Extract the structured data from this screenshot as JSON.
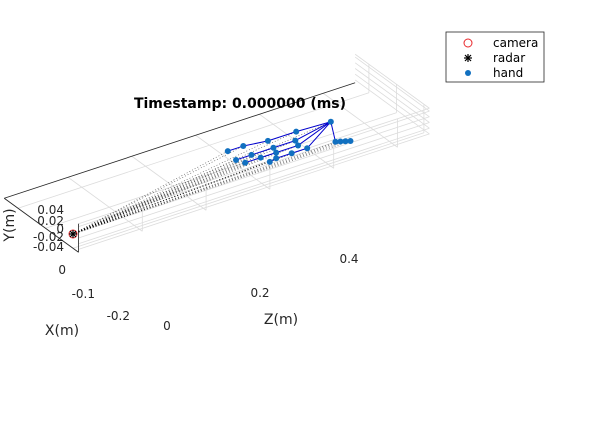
{
  "chart_data": {
    "type": "scatter",
    "title": "Timestamp: 0.000000 (ms)",
    "xlabel": "X(m)",
    "ylabel": "Y(m)",
    "zlabel": "Z(m)",
    "x_ticks": [
      "0",
      "-0.1",
      "-0.2"
    ],
    "y_ticks": [
      "0.04",
      "0.02",
      "0",
      "-0.02",
      "-0.04"
    ],
    "z_ticks": [
      "0",
      "0.2",
      "0.4"
    ],
    "xlim": [
      -0.25,
      0.02
    ],
    "ylim": [
      -0.05,
      0.05
    ],
    "zlim": [
      0,
      0.55
    ],
    "grid": true,
    "legend_position": "top-right",
    "legend": [
      {
        "label": "camera",
        "marker": "circle-open",
        "color": "#e8262a"
      },
      {
        "label": "radar",
        "marker": "asterisk",
        "color": "#000000"
      },
      {
        "label": "hand",
        "marker": "dot",
        "color": "#1170c0"
      }
    ],
    "series": [
      {
        "name": "camera",
        "points": [
          [
            0,
            0,
            0
          ]
        ]
      },
      {
        "name": "radar",
        "points": [
          [
            0,
            0,
            0
          ]
        ]
      },
      {
        "name": "hand",
        "points": [
          [
            -0.06,
            0.035,
            0.43
          ],
          [
            -0.07,
            0.03,
            0.38
          ],
          [
            -0.08,
            0.02,
            0.34
          ],
          [
            -0.1,
            0.01,
            0.31
          ],
          [
            -0.11,
            0.0,
            0.29
          ],
          [
            -0.05,
            0.02,
            0.37
          ],
          [
            -0.06,
            0.01,
            0.34
          ],
          [
            -0.07,
            0.0,
            0.31
          ],
          [
            -0.08,
            -0.01,
            0.29
          ],
          [
            -0.04,
            0.01,
            0.37
          ],
          [
            -0.05,
            0.0,
            0.34
          ],
          [
            -0.06,
            -0.01,
            0.32
          ],
          [
            -0.07,
            -0.02,
            0.3
          ],
          [
            -0.03,
            0.0,
            0.38
          ],
          [
            -0.04,
            -0.01,
            0.36
          ],
          [
            -0.05,
            -0.02,
            0.34
          ],
          [
            -0.05,
            -0.025,
            0.33
          ],
          [
            -0.02,
            0.0,
            0.42
          ],
          [
            -0.025,
            -0.01,
            0.43
          ],
          [
            -0.03,
            -0.02,
            0.44
          ],
          [
            -0.035,
            -0.03,
            0.45
          ]
        ]
      }
    ],
    "colors": {
      "hand_marker": "#1170c0",
      "hand_skeleton": "#0000cc",
      "camera": "#e8262a",
      "radar": "#000000",
      "rays": "#000000",
      "grid": "#dcdcdc",
      "axis": "#262626"
    }
  }
}
